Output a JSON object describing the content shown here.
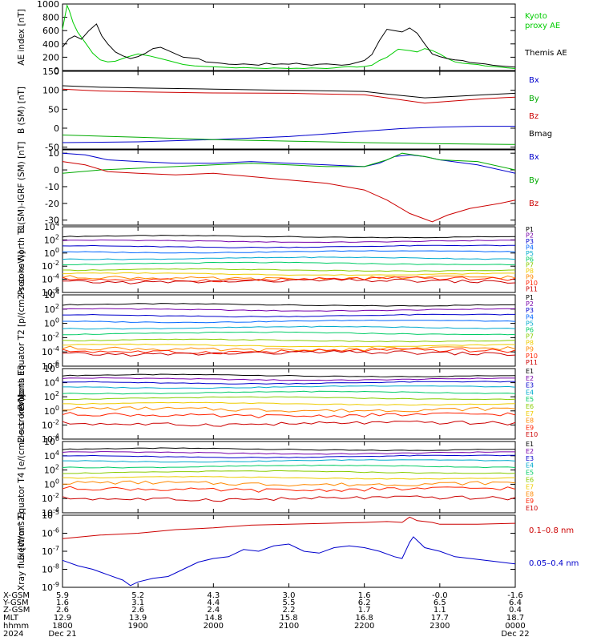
{
  "chart_data": [
    {
      "type": "line",
      "ylabel": "AE index [nT]",
      "ylim": [
        0,
        1000
      ],
      "yticks": [
        "0",
        "200",
        "400",
        "600",
        "800",
        "1000"
      ],
      "series": [
        {
          "name": "Kyoto proxy AE",
          "color": "#00cc00",
          "x": [
            0,
            0.06,
            0.09,
            0.14,
            0.2,
            0.3,
            0.4,
            0.5,
            0.6,
            0.7,
            0.85,
            1.0,
            1.15,
            1.3,
            1.4,
            1.5,
            1.6,
            1.75,
            1.9,
            2.0,
            2.1,
            2.2,
            2.3,
            2.4,
            2.5,
            2.6,
            2.7,
            2.8,
            2.9,
            3.0,
            3.1,
            3.2,
            3.3,
            3.4,
            3.5,
            3.6,
            3.7,
            3.8,
            3.9,
            4.0,
            4.1,
            4.2,
            4.3,
            4.45,
            4.6,
            4.7,
            4.8,
            4.9,
            5.0,
            5.1,
            5.2,
            5.3,
            5.4,
            5.5,
            5.6,
            5.7,
            5.8,
            5.9,
            6.0
          ],
          "y": [
            620,
            980,
            900,
            720,
            580,
            420,
            260,
            160,
            130,
            140,
            200,
            250,
            220,
            180,
            150,
            120,
            90,
            70,
            60,
            55,
            50,
            45,
            40,
            45,
            40,
            35,
            30,
            40,
            35,
            30,
            35,
            30,
            40,
            35,
            30,
            40,
            50,
            60,
            50,
            60,
            80,
            150,
            200,
            320,
            300,
            280,
            330,
            300,
            250,
            180,
            130,
            110,
            100,
            90,
            70,
            60,
            50,
            40,
            30
          ]
        },
        {
          "name": "Themis AE",
          "color": "#000000",
          "x": [
            0,
            0.08,
            0.16,
            0.25,
            0.35,
            0.45,
            0.52,
            0.6,
            0.7,
            0.8,
            0.9,
            1.0,
            1.1,
            1.2,
            1.3,
            1.4,
            1.5,
            1.6,
            1.7,
            1.8,
            1.9,
            2.0,
            2.1,
            2.2,
            2.3,
            2.4,
            2.5,
            2.6,
            2.7,
            2.8,
            2.9,
            3.0,
            3.1,
            3.2,
            3.3,
            3.4,
            3.5,
            3.6,
            3.7,
            3.8,
            3.9,
            4.0,
            4.1,
            4.2,
            4.3,
            4.4,
            4.5,
            4.6,
            4.7,
            4.8,
            4.9,
            5.0,
            5.1,
            5.2,
            5.3,
            5.4,
            5.5,
            5.6,
            5.7,
            5.8,
            5.9,
            6.0
          ],
          "y": [
            350,
            470,
            520,
            470,
            600,
            700,
            520,
            400,
            280,
            220,
            180,
            210,
            260,
            330,
            350,
            300,
            250,
            200,
            190,
            180,
            130,
            120,
            110,
            95,
            90,
            100,
            90,
            80,
            110,
            90,
            100,
            95,
            110,
            90,
            80,
            95,
            100,
            90,
            80,
            90,
            120,
            150,
            240,
            450,
            620,
            600,
            580,
            640,
            560,
            400,
            250,
            210,
            180,
            160,
            150,
            120,
            110,
            100,
            80,
            70,
            60,
            50
          ]
        }
      ],
      "legend": [
        {
          "text": "Kyoto",
          "color": "#00cc00"
        },
        {
          "text": "proxy AE",
          "color": "#00cc00"
        },
        {
          "text": "Themis AE",
          "color": "#000000"
        }
      ]
    },
    {
      "type": "line",
      "ylabel": "B (SM) [nT]",
      "ylim": [
        -55,
        150
      ],
      "yticks": [
        "-50",
        "0",
        "50",
        "100",
        "150"
      ],
      "tickvals": [
        -50,
        0,
        50,
        100,
        150
      ],
      "series": [
        {
          "name": "Bx",
          "color": "#0000cc",
          "x": [
            0,
            1,
            2,
            3,
            3.5,
            4,
            4.5,
            5,
            5.5,
            6
          ],
          "y": [
            -38,
            -36,
            -30,
            -22,
            -15,
            -8,
            -1,
            3,
            5,
            5
          ]
        },
        {
          "name": "By",
          "color": "#00aa00",
          "x": [
            0,
            1,
            2,
            3,
            4,
            5,
            6
          ],
          "y": [
            -18,
            -24,
            -30,
            -34,
            -38,
            -41,
            -43
          ]
        },
        {
          "name": "Bz",
          "color": "#cc0000",
          "x": [
            0,
            0.5,
            1,
            2,
            3,
            4,
            4.3,
            4.8,
            5.2,
            5.6,
            6
          ],
          "y": [
            103,
            98,
            96,
            93,
            92,
            88,
            80,
            66,
            72,
            78,
            82
          ]
        },
        {
          "name": "Bmag",
          "color": "#000000",
          "x": [
            0,
            0.5,
            1,
            2,
            3,
            4,
            4.3,
            4.8,
            5.2,
            5.6,
            6
          ],
          "y": [
            112,
            108,
            106,
            103,
            100,
            97,
            90,
            80,
            84,
            88,
            92
          ]
        }
      ],
      "legend": [
        {
          "text": "Bx",
          "color": "#0000cc"
        },
        {
          "text": "By",
          "color": "#00aa00"
        },
        {
          "text": "Bz",
          "color": "#cc0000"
        },
        {
          "text": "Bmag",
          "color": "#000000"
        }
      ]
    },
    {
      "type": "line",
      "ylabel": "B (SM)-IGRF (SM) [nT]",
      "ylim": [
        -33,
        12
      ],
      "yticks": [
        "-30",
        "-20",
        "-10",
        "0",
        "10"
      ],
      "tickvals": [
        -30,
        -20,
        -10,
        0,
        10
      ],
      "series": [
        {
          "name": "Bx",
          "color": "#0000cc",
          "x": [
            0,
            0.3,
            0.6,
            1,
            1.5,
            2,
            2.5,
            3,
            3.5,
            4,
            4.2,
            4.4,
            4.6,
            4.8,
            5,
            5.5,
            6
          ],
          "y": [
            10,
            9,
            6,
            5,
            4,
            4,
            5,
            4,
            3,
            2,
            4,
            8,
            9,
            8,
            6,
            3,
            -2
          ]
        },
        {
          "name": "By",
          "color": "#00aa00",
          "x": [
            0,
            0.5,
            1,
            1.5,
            2,
            2.5,
            3,
            3.5,
            4,
            4.3,
            4.5,
            4.8,
            5,
            5.5,
            6
          ],
          "y": [
            -2,
            0,
            1,
            2,
            3,
            4,
            3,
            2,
            2,
            6,
            10,
            8,
            6,
            5,
            0
          ]
        },
        {
          "name": "Bz",
          "color": "#cc0000",
          "x": [
            0,
            0.3,
            0.6,
            1,
            1.5,
            2,
            2.5,
            3,
            3.5,
            4,
            4.3,
            4.6,
            4.9,
            5.1,
            5.4,
            5.8,
            6
          ],
          "y": [
            5,
            3,
            -1,
            -2,
            -3,
            -2,
            -4,
            -6,
            -8,
            -12,
            -18,
            -26,
            -31,
            -27,
            -23,
            -20,
            -18
          ]
        }
      ],
      "legend": [
        {
          "text": "Bx",
          "color": "#0000cc"
        },
        {
          "text": "By",
          "color": "#00aa00"
        },
        {
          "text": "Bz",
          "color": "#cc0000"
        }
      ]
    },
    {
      "type": "line",
      "ylabel": "Protons North T1",
      "ylim": [
        -6,
        4
      ],
      "log": true,
      "yticks": [
        "10-6",
        "10-4",
        "10-2",
        "100",
        "102",
        "104"
      ],
      "tickvals": [
        -6,
        -4,
        -2,
        0,
        2,
        4
      ],
      "channels": [
        "P1",
        "P2",
        "P3",
        "P4",
        "P5",
        "P6",
        "P7",
        "P8",
        "P9",
        "P10",
        "P11"
      ],
      "levels": [
        2.5,
        1.8,
        1.0,
        0.2,
        -0.8,
        -1.6,
        -2.6,
        -3.2,
        -3.8,
        -4.0,
        -4.3
      ],
      "series_colors": [
        "#000000",
        "#7700aa",
        "#0000cc",
        "#0066ff",
        "#00aacc",
        "#00cc66",
        "#88cc00",
        "#eecc00",
        "#ff8800",
        "#ff2200",
        "#cc0000"
      ]
    },
    {
      "type": "line",
      "ylabel": "Protons Equator T2 [p/(cm2-s-sr-keV)]",
      "ylim": [
        -6,
        4
      ],
      "log": true,
      "yticks": [
        "10-6",
        "10-4",
        "10-2",
        "100",
        "102",
        "104"
      ],
      "tickvals": [
        -6,
        -4,
        -2,
        0,
        2,
        4
      ],
      "channels": [
        "P1",
        "P2",
        "P3",
        "P4",
        "P5",
        "P6",
        "P7",
        "P8",
        "P9",
        "P10",
        "P11"
      ],
      "levels": [
        2.6,
        1.9,
        1.1,
        0.3,
        -0.6,
        -1.4,
        -2.4,
        -3.1,
        -3.6,
        -3.9,
        -4.2
      ],
      "series_colors": [
        "#000000",
        "#7700aa",
        "#0000cc",
        "#0066ff",
        "#00aacc",
        "#00cc66",
        "#88cc00",
        "#eecc00",
        "#ff8800",
        "#ff2200",
        "#cc0000"
      ]
    },
    {
      "type": "line",
      "ylabel": "Electrons North T3",
      "ylim": [
        -4,
        6
      ],
      "log": true,
      "yticks": [
        "10-4",
        "10-2",
        "100",
        "102",
        "104",
        "106"
      ],
      "tickvals": [
        -4,
        -2,
        0,
        2,
        4,
        6
      ],
      "channels": [
        "E1",
        "E2",
        "E3",
        "E4",
        "E5",
        "E6",
        "E7",
        "E8",
        "E9",
        "E10"
      ],
      "levels": [
        5.0,
        4.5,
        4.0,
        3.4,
        2.6,
        1.8,
        1.0,
        0.2,
        -0.6,
        -1.8
      ],
      "series_colors": [
        "#000000",
        "#7700aa",
        "#0000cc",
        "#00aacc",
        "#00cc66",
        "#88cc00",
        "#eecc00",
        "#ff8800",
        "#ff2200",
        "#cc0000"
      ]
    },
    {
      "type": "line",
      "ylabel": "Electrons Equator T4 [e/(cm2-s-sr-keV)]",
      "ylim": [
        -4,
        6
      ],
      "log": true,
      "yticks": [
        "10-4",
        "10-2",
        "100",
        "102",
        "104",
        "106"
      ],
      "tickvals": [
        -4,
        -2,
        0,
        2,
        4,
        6
      ],
      "channels": [
        "E1",
        "E2",
        "E3",
        "E4",
        "E5",
        "E6",
        "E7",
        "E8",
        "E9",
        "E10"
      ],
      "levels": [
        4.9,
        4.4,
        3.9,
        3.3,
        2.5,
        1.7,
        0.9,
        0.1,
        -0.7,
        -2.0
      ],
      "series_colors": [
        "#000000",
        "#7700aa",
        "#0000cc",
        "#00aacc",
        "#00cc66",
        "#88cc00",
        "#eecc00",
        "#ff8800",
        "#ff2200",
        "#cc0000"
      ]
    },
    {
      "type": "line",
      "ylabel": "Xray flux [W/m^2]",
      "ylim": [
        -9,
        -5
      ],
      "log": true,
      "yticks": [
        "10-9",
        "10-8",
        "10-7",
        "10-6",
        "10-5"
      ],
      "tickvals": [
        -9,
        -8,
        -7,
        -6,
        -5
      ],
      "series": [
        {
          "name": "0.1-0.8 nm",
          "color": "#cc0000",
          "x": [
            0,
            0.5,
            1,
            1.5,
            2,
            2.5,
            3,
            3.5,
            4,
            4.3,
            4.5,
            4.6,
            4.7,
            4.9,
            5,
            5.5,
            6
          ],
          "y": [
            -6.3,
            -6.1,
            -6.0,
            -5.8,
            -5.7,
            -5.55,
            -5.5,
            -5.45,
            -5.4,
            -5.35,
            -5.4,
            -5.1,
            -5.3,
            -5.4,
            -5.5,
            -5.5,
            -5.45
          ]
        },
        {
          "name": "0.05-0.4 nm",
          "color": "#0000cc",
          "x": [
            0,
            0.2,
            0.4,
            0.6,
            0.8,
            0.9,
            1.0,
            1.2,
            1.4,
            1.6,
            1.8,
            2.0,
            2.2,
            2.4,
            2.6,
            2.8,
            3.0,
            3.2,
            3.4,
            3.6,
            3.8,
            4.0,
            4.2,
            4.4,
            4.5,
            4.6,
            4.65,
            4.8,
            5.0,
            5.2,
            5.4,
            5.6,
            5.8,
            6.0
          ],
          "y": [
            -7.5,
            -7.8,
            -8.0,
            -8.3,
            -8.6,
            -8.9,
            -8.7,
            -8.5,
            -8.4,
            -8.0,
            -7.6,
            -7.4,
            -7.3,
            -6.9,
            -7.0,
            -6.7,
            -6.6,
            -7.0,
            -7.1,
            -6.8,
            -6.7,
            -6.8,
            -7.0,
            -7.3,
            -7.4,
            -6.5,
            -6.2,
            -6.8,
            -7.0,
            -7.3,
            -7.4,
            -7.5,
            -7.6,
            -7.7
          ]
        }
      ],
      "legend": [
        {
          "text": "0.1–0.8 nm",
          "color": "#cc0000"
        },
        {
          "text": "0.05–0.4 nm",
          "color": "#0000cc"
        }
      ]
    }
  ],
  "time_axis": {
    "row_labels": [
      "X-GSM",
      "Y-GSM",
      "Z-GSM",
      "MLT",
      "hhmm",
      "2024"
    ],
    "columns": [
      [
        "5.9",
        "1.6",
        "2.6",
        "12.9",
        "1800",
        "Dec 21"
      ],
      [
        "5.2",
        "3.1",
        "2.6",
        "13.9",
        "1900",
        ""
      ],
      [
        "4.3",
        "4.4",
        "2.4",
        "14.8",
        "2000",
        ""
      ],
      [
        "3.0",
        "5.5",
        "2.2",
        "15.8",
        "2100",
        ""
      ],
      [
        "1.6",
        "6.2",
        "1.7",
        "16.8",
        "2200",
        ""
      ],
      [
        "-0.0",
        "6.5",
        "1.1",
        "17.7",
        "2300",
        ""
      ],
      [
        "-1.6",
        "6.4",
        "0.4",
        "18.7",
        "0000",
        "Dec 22"
      ]
    ]
  }
}
